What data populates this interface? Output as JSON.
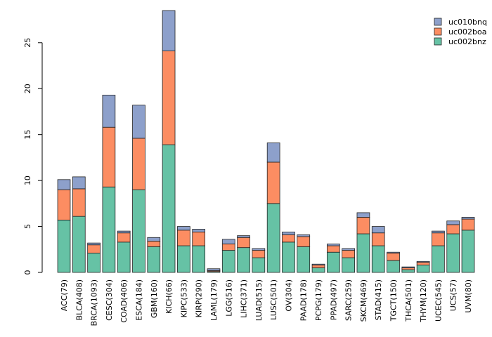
{
  "chart_data": {
    "type": "bar",
    "stacked": true,
    "title": "",
    "xlabel": "",
    "ylabel": "",
    "ylim": [
      0,
      28.5
    ],
    "yticks": [
      0,
      5,
      10,
      15,
      20,
      25
    ],
    "grid": false,
    "legend_position": "top-right",
    "categories": [
      "ACC(79)",
      "BLCA(408)",
      "BRCA(1093)",
      "CESC(304)",
      "COAD(406)",
      "ESCA(184)",
      "GBM(160)",
      "KICH(66)",
      "KIPC(533)",
      "KIRP(290)",
      "LAML(179)",
      "LGG(516)",
      "LIHC(371)",
      "LUAD(515)",
      "LUSC(501)",
      "OV(304)",
      "PAAD(178)",
      "PCPG(179)",
      "PPAD(497)",
      "SARC(259)",
      "SKCM(469)",
      "STAD(415)",
      "TGCT(150)",
      "THCA(501)",
      "THYM(120)",
      "UCEC(545)",
      "UCS(57)",
      "UVM(80)"
    ],
    "series": [
      {
        "name": "uc002bnz",
        "color": "#66c2a5",
        "values": [
          5.7,
          6.1,
          2.1,
          9.3,
          3.3,
          9.0,
          2.8,
          13.9,
          2.9,
          2.9,
          0.1,
          2.4,
          2.7,
          1.6,
          7.5,
          3.3,
          2.8,
          0.5,
          2.2,
          1.6,
          4.2,
          2.9,
          1.3,
          0.3,
          0.8,
          2.9,
          4.2,
          4.6
        ]
      },
      {
        "name": "uc002boa",
        "color": "#fc8d62",
        "values": [
          3.3,
          3.0,
          0.9,
          6.5,
          1.0,
          5.6,
          0.6,
          10.2,
          1.7,
          1.5,
          0.1,
          0.7,
          1.1,
          0.8,
          4.5,
          0.8,
          1.1,
          0.3,
          0.7,
          0.8,
          1.8,
          1.4,
          0.8,
          0.2,
          0.3,
          1.4,
          1.0,
          1.2
        ]
      },
      {
        "name": "uc010bnq",
        "color": "#8da0cb",
        "values": [
          1.1,
          1.3,
          0.2,
          3.5,
          0.2,
          3.6,
          0.4,
          4.4,
          0.4,
          0.3,
          0.2,
          0.5,
          0.2,
          0.2,
          2.1,
          0.3,
          0.2,
          0.1,
          0.2,
          0.2,
          0.5,
          0.7,
          0.1,
          0.1,
          0.1,
          0.2,
          0.4,
          0.2
        ]
      }
    ],
    "legend_order": [
      "uc010bnq",
      "uc002boa",
      "uc002bnz"
    ]
  }
}
